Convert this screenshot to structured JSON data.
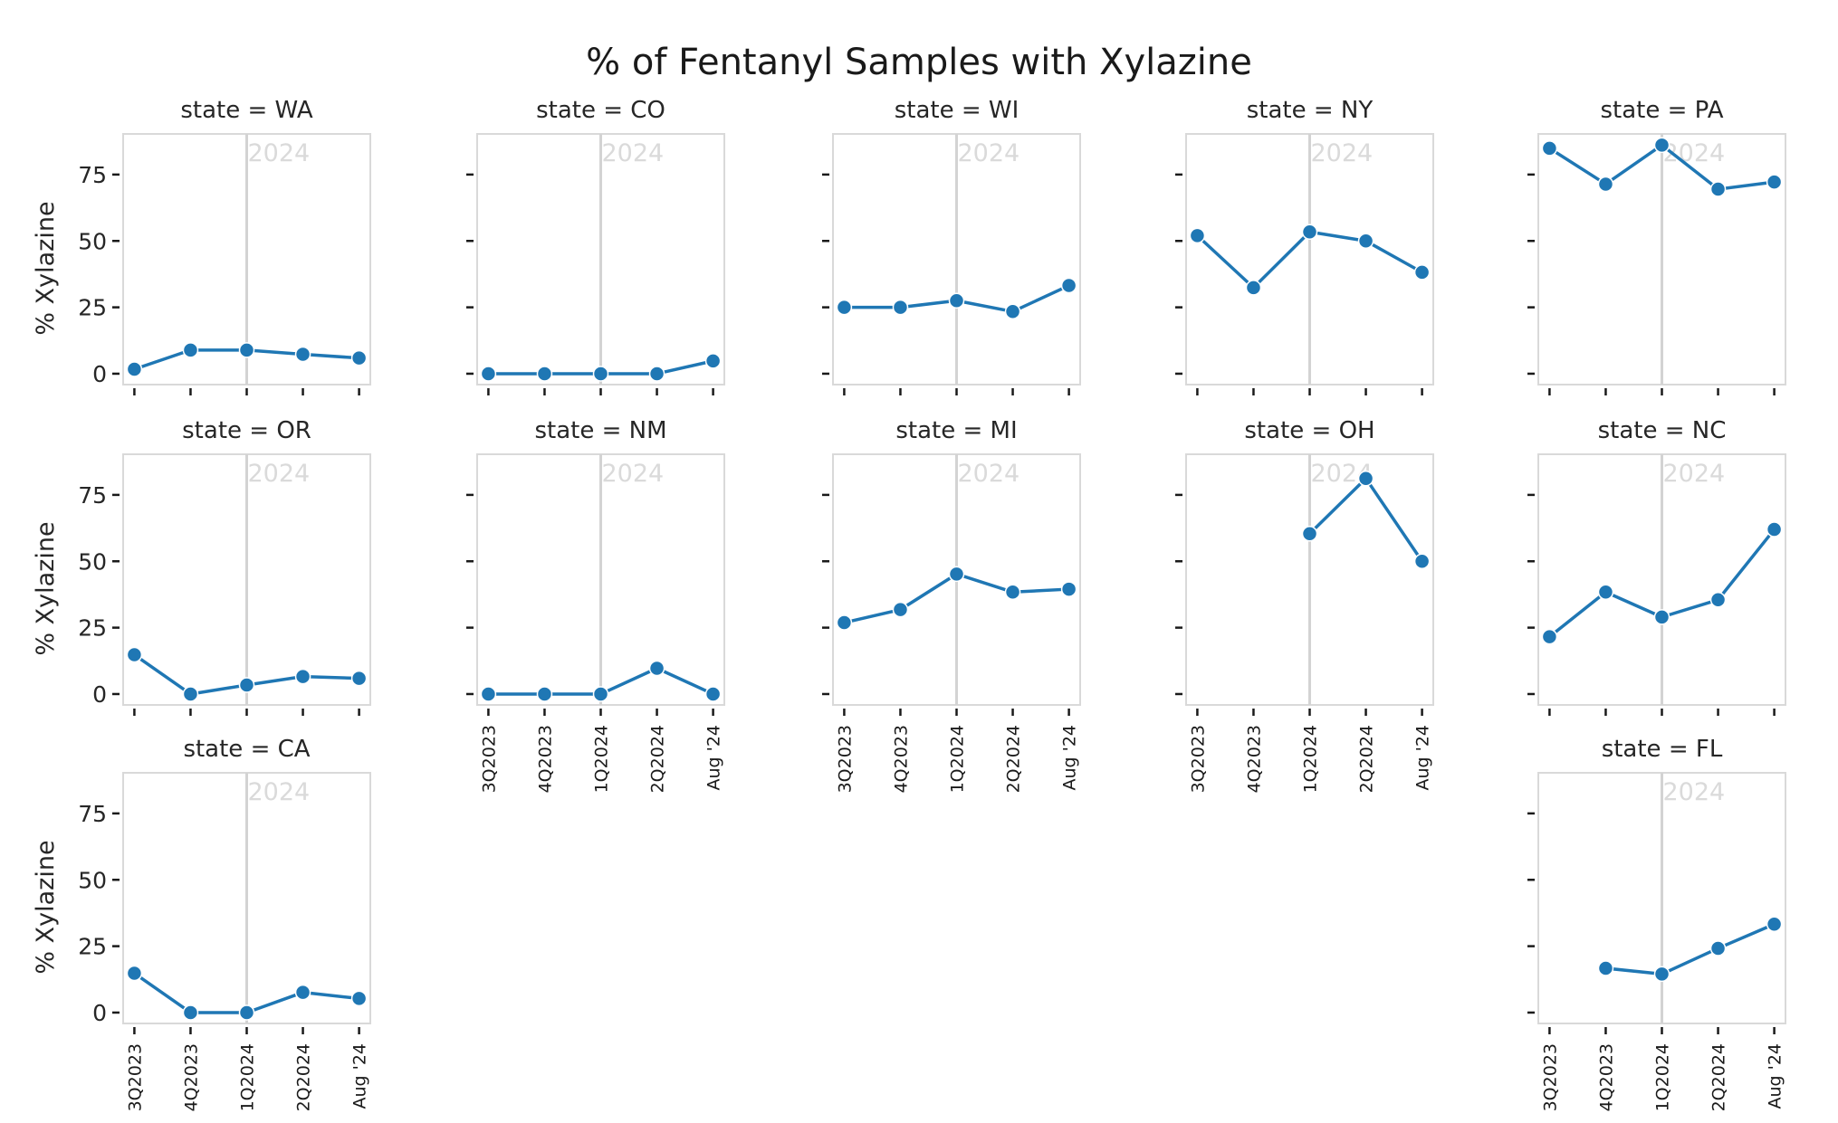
{
  "chart_data": {
    "type": "line",
    "title": "% of Fentanyl Samples with Xylazine",
    "ylabel": "% Xylazine",
    "xlabel": "",
    "categories": [
      "3Q2023",
      "4Q2023",
      "1Q2024",
      "2Q2024",
      "Aug '24"
    ],
    "yticks": [
      0,
      25,
      50,
      75
    ],
    "ylim": [
      -4,
      90
    ],
    "reference_line": {
      "category": "1Q2024",
      "label": "2024"
    },
    "facet_label_prefix": "state = ",
    "line_color": "#1f77b4",
    "panels": [
      {
        "state": "WA",
        "title": "state = WA",
        "values": [
          1.7,
          8.9,
          8.9,
          7.3,
          5.9
        ]
      },
      {
        "state": "CO",
        "title": "state = CO",
        "values": [
          0,
          0,
          0,
          0,
          4.8
        ]
      },
      {
        "state": "WI",
        "title": "state = WI",
        "values": [
          25.0,
          25.0,
          27.5,
          23.4,
          33.2
        ]
      },
      {
        "state": "NY",
        "title": "state = NY",
        "values": [
          52.0,
          32.4,
          53.4,
          50.0,
          38.2
        ]
      },
      {
        "state": "PA",
        "title": "state = PA",
        "values": [
          84.9,
          71.4,
          86.1,
          69.5,
          72.2
        ]
      },
      {
        "state": "OR",
        "title": "state = OR",
        "values": [
          14.8,
          0,
          3.4,
          6.6,
          5.9
        ]
      },
      {
        "state": "NM",
        "title": "state = NM",
        "values": [
          0,
          0,
          0,
          9.7,
          0
        ]
      },
      {
        "state": "MI",
        "title": "state = MI",
        "values": [
          26.9,
          31.8,
          45.2,
          38.4,
          39.5
        ]
      },
      {
        "state": "OH",
        "title": "state = OH",
        "values": [
          null,
          null,
          60.4,
          81.2,
          50.0
        ]
      },
      {
        "state": "NC",
        "title": "state = NC",
        "values": [
          21.6,
          38.4,
          29.0,
          35.5,
          62.0
        ]
      },
      {
        "state": "CA",
        "title": "state = CA",
        "values": [
          14.8,
          0,
          0,
          7.6,
          5.3
        ]
      },
      {
        "state": "FL",
        "title": "state = FL",
        "values": [
          null,
          16.7,
          14.5,
          24.2,
          33.3
        ]
      }
    ]
  }
}
